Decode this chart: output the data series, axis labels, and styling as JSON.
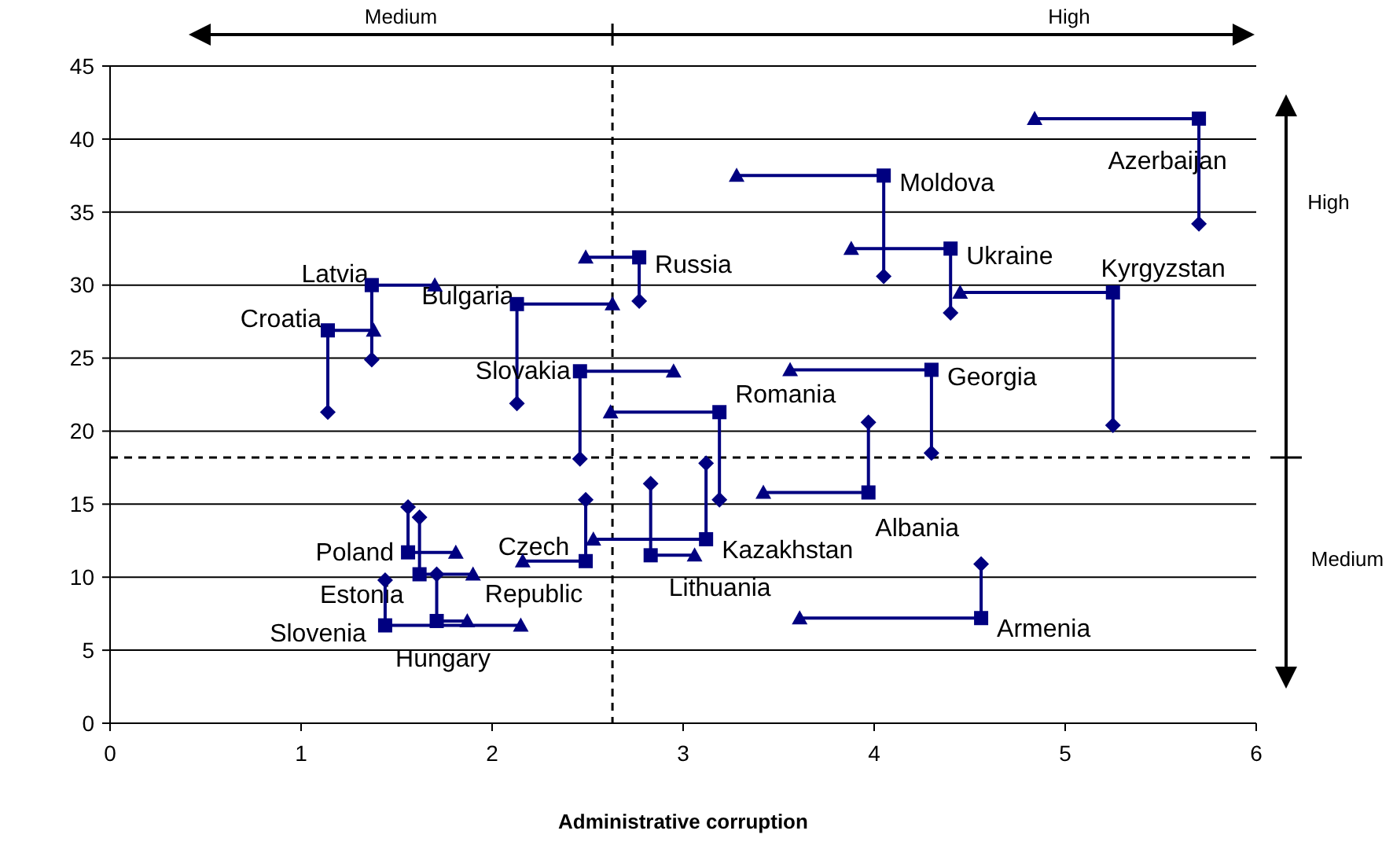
{
  "chart_data": {
    "type": "line",
    "xlabel": "Administrative corruption",
    "xlim": [
      0,
      6
    ],
    "xticks": [
      0,
      1,
      2,
      3,
      4,
      5,
      6
    ],
    "ylim": [
      0,
      45
    ],
    "yticks": [
      0,
      5,
      10,
      15,
      20,
      25,
      30,
      35,
      40,
      45
    ],
    "grid": "y",
    "line_style": "solid",
    "annotations": [
      "Medium",
      "High",
      "High",
      "Medium"
    ],
    "ref_lines": [
      {
        "axis": "x",
        "value": 2.63,
        "line_style": "dashed",
        "color": "#000000"
      },
      {
        "axis": "y",
        "value": 18.2,
        "line_style": "dashed",
        "color": "#000000"
      }
    ],
    "series": [
      {
        "name": "Azerbaijan",
        "color": "#000080",
        "x": [
          4.84,
          5.7,
          5.7
        ],
        "values": [
          41.4,
          41.4,
          34.2
        ]
      },
      {
        "name": "Moldova",
        "color": "#000080",
        "x": [
          3.28,
          4.05,
          4.05
        ],
        "values": [
          37.5,
          37.5,
          30.6
        ]
      },
      {
        "name": "Ukraine",
        "color": "#000080",
        "x": [
          3.88,
          4.4,
          4.4
        ],
        "values": [
          32.5,
          32.5,
          28.1
        ]
      },
      {
        "name": "Kyrgyzstan",
        "color": "#000080",
        "x": [
          4.45,
          5.25,
          5.25
        ],
        "values": [
          29.5,
          29.5,
          20.4
        ]
      },
      {
        "name": "Georgia",
        "color": "#000080",
        "x": [
          3.56,
          4.3,
          4.3
        ],
        "values": [
          24.2,
          24.2,
          18.5
        ]
      },
      {
        "name": "Russia",
        "color": "#000080",
        "x": [
          2.49,
          2.77,
          2.77
        ],
        "values": [
          31.9,
          31.9,
          28.9
        ]
      },
      {
        "name": "Latvia",
        "color": "#000080",
        "x": [
          1.7,
          1.37,
          1.37
        ],
        "values": [
          30,
          30,
          24.9
        ]
      },
      {
        "name": "Croatia",
        "color": "#000080",
        "x": [
          1.38,
          1.14,
          1.14
        ],
        "values": [
          26.9,
          26.9,
          21.3
        ]
      },
      {
        "name": "Bulgaria",
        "color": "#000080",
        "x": [
          2.63,
          2.13,
          2.13
        ],
        "values": [
          28.7,
          28.7,
          21.9
        ]
      },
      {
        "name": "Slovakia",
        "color": "#000080",
        "x": [
          2.95,
          2.46,
          2.46
        ],
        "values": [
          24.1,
          24.1,
          18.1
        ]
      },
      {
        "name": "Romania",
        "color": "#000080",
        "x": [
          2.62,
          3.19,
          3.19
        ],
        "values": [
          21.3,
          21.3,
          15.3
        ]
      },
      {
        "name": "Albania",
        "color": "#000080",
        "x": [
          3.42,
          3.97,
          3.97
        ],
        "values": [
          15.8,
          15.8,
          20.6
        ]
      },
      {
        "name": "Armenia",
        "color": "#000080",
        "x": [
          3.61,
          4.56,
          4.56
        ],
        "values": [
          7.2,
          7.2,
          10.9
        ]
      },
      {
        "name": "Kazakhstan",
        "color": "#000080",
        "x": [
          2.53,
          3.12,
          3.12
        ],
        "values": [
          12.6,
          12.6,
          17.8
        ]
      },
      {
        "name": "Lithuania",
        "color": "#000080",
        "x": [
          3.06,
          2.83,
          2.83
        ],
        "values": [
          11.5,
          11.5,
          16.4
        ]
      },
      {
        "name": "Czech Republic",
        "color": "#000080",
        "x": [
          2.16,
          2.49,
          2.49
        ],
        "values": [
          11.1,
          11.1,
          15.3
        ]
      },
      {
        "name": "Poland",
        "color": "#000080",
        "x": [
          1.81,
          1.56,
          1.56
        ],
        "values": [
          11.7,
          11.7,
          14.8
        ]
      },
      {
        "name": "Estonia",
        "color": "#000080",
        "x": [
          1.9,
          1.62,
          1.62
        ],
        "values": [
          10.2,
          10.2,
          14.1
        ]
      },
      {
        "name": "Hungary",
        "color": "#000080",
        "x": [
          1.87,
          1.71,
          1.71
        ],
        "values": [
          7,
          7,
          10.2
        ]
      },
      {
        "name": "Slovenia",
        "color": "#000080",
        "x": [
          2.15,
          1.44,
          1.44
        ],
        "values": [
          6.7,
          6.7,
          9.8
        ]
      },
      {
        "type": "scatter",
        "marker": "triangle",
        "color": "#000080",
        "x": [
          4.84,
          3.28,
          3.88,
          4.45,
          3.56,
          2.49,
          1.7,
          1.38,
          2.63,
          2.95,
          2.62,
          3.42,
          3.61,
          2.53,
          3.06,
          2.16,
          1.81,
          1.9,
          1.87,
          2.15
        ],
        "values": [
          41.4,
          37.5,
          32.5,
          29.5,
          24.2,
          31.9,
          30,
          26.9,
          28.7,
          24.1,
          21.3,
          15.8,
          7.2,
          12.6,
          11.5,
          11.1,
          11.7,
          10.2,
          7,
          6.7
        ]
      },
      {
        "type": "scatter",
        "marker": "square",
        "color": "#000080",
        "x": [
          5.7,
          4.05,
          4.4,
          5.25,
          4.3,
          2.77,
          1.37,
          1.14,
          2.13,
          2.46,
          3.19,
          3.97,
          4.56,
          3.12,
          2.83,
          2.49,
          1.56,
          1.62,
          1.71,
          1.44
        ],
        "values": [
          41.4,
          37.5,
          32.5,
          29.5,
          24.2,
          31.9,
          30,
          26.9,
          28.7,
          24.1,
          21.3,
          15.8,
          7.2,
          12.6,
          11.5,
          11.1,
          11.7,
          10.2,
          7,
          6.7
        ]
      },
      {
        "type": "scatter",
        "marker": "diamond",
        "color": "#000080",
        "x": [
          5.7,
          4.05,
          4.4,
          5.25,
          4.3,
          2.77,
          1.37,
          1.14,
          2.13,
          2.46,
          3.19,
          3.97,
          4.56,
          3.12,
          2.83,
          2.49,
          1.56,
          1.62,
          1.71,
          1.44
        ],
        "values": [
          34.2,
          30.6,
          28.1,
          20.4,
          18.5,
          28.9,
          24.9,
          21.3,
          21.9,
          18.1,
          15.3,
          20.6,
          10.9,
          17.8,
          16.4,
          15.3,
          14.8,
          14.1,
          10.2,
          9.8
        ]
      }
    ]
  }
}
